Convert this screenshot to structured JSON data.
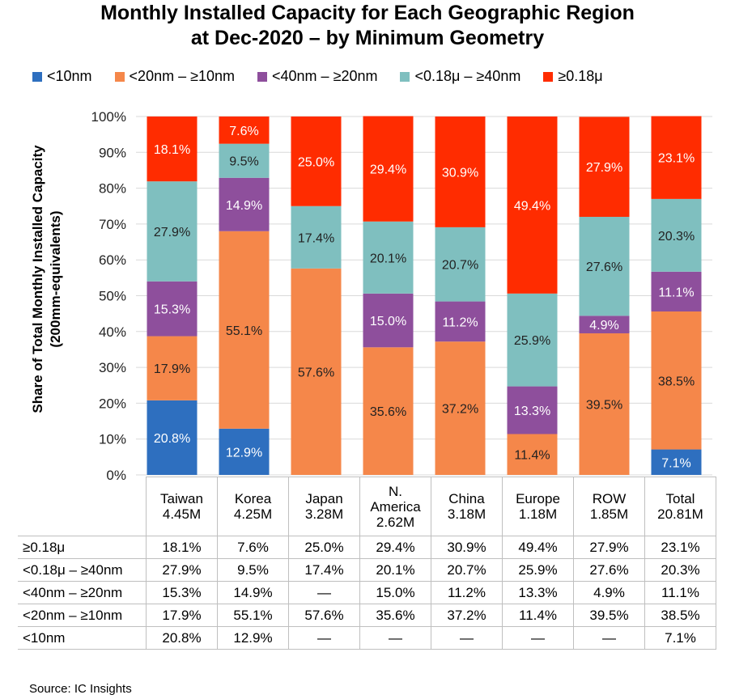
{
  "chart_data": {
    "type": "bar",
    "stacked": true,
    "title": "Monthly Installed Capacity for Each Geographic Region",
    "subtitle": "at Dec-2020 – by Minimum Geometry",
    "ylabel_line1": "Share of Total Monthly Installed Capacity",
    "ylabel_line2": "(200mm-equivalents)",
    "ylim": [
      0,
      100
    ],
    "yticks": [
      "0%",
      "10%",
      "20%",
      "30%",
      "40%",
      "50%",
      "60%",
      "70%",
      "80%",
      "90%",
      "100%"
    ],
    "categories": [
      "Taiwan",
      "Korea",
      "Japan",
      "N. America",
      "China",
      "Europe",
      "ROW",
      "Total"
    ],
    "category_line1": [
      "Taiwan",
      "Korea",
      "Japan",
      "N.",
      "China",
      "Europe",
      "ROW",
      "Total"
    ],
    "category_line2": [
      "4.45M",
      "4.25M",
      "3.28M",
      "America",
      "3.18M",
      "1.18M",
      "1.85M",
      "20.81M"
    ],
    "category_line3": [
      "",
      "",
      "",
      "2.62M",
      "",
      "",
      "",
      ""
    ],
    "series": [
      {
        "name": "<10nm",
        "color": "#2e6fbf",
        "values": [
          20.8,
          12.9,
          0,
          0,
          0,
          0,
          0,
          7.1
        ],
        "labels": [
          "20.8%",
          "12.9%",
          "",
          "",
          "",
          "",
          "",
          "7.1%"
        ],
        "text_color": "#ffffff"
      },
      {
        "name": "<20nm – ≥10nm",
        "color": "#f5874a",
        "values": [
          17.9,
          55.1,
          57.6,
          35.6,
          37.2,
          11.4,
          39.5,
          38.5
        ],
        "labels": [
          "17.9%",
          "55.1%",
          "57.6%",
          "35.6%",
          "37.2%",
          "11.4%",
          "39.5%",
          "38.5%"
        ],
        "text_color": "#222222"
      },
      {
        "name": "<40nm – ≥20nm",
        "color": "#8e4f9c",
        "values": [
          15.3,
          14.9,
          0,
          15.0,
          11.2,
          13.3,
          4.9,
          11.1
        ],
        "labels": [
          "15.3%",
          "14.9%",
          "",
          "15.0%",
          "11.2%",
          "13.3%",
          "4.9%",
          "11.1%"
        ],
        "text_color": "#ffffff"
      },
      {
        "name": "<0.18μ – ≥40nm",
        "color": "#7fbfbf",
        "values": [
          27.9,
          9.5,
          17.4,
          20.1,
          20.7,
          25.9,
          27.6,
          20.3
        ],
        "labels": [
          "27.9%",
          "9.5%",
          "17.4%",
          "20.1%",
          "20.7%",
          "25.9%",
          "27.6%",
          "20.3%"
        ],
        "text_color": "#222222"
      },
      {
        "name": "≥0.18μ",
        "color": "#ff2c00",
        "values": [
          18.1,
          7.6,
          25.0,
          29.4,
          30.9,
          49.4,
          27.9,
          23.1
        ],
        "labels": [
          "18.1%",
          "7.6%",
          "25.0%",
          "29.4%",
          "30.9%",
          "49.4%",
          "27.9%",
          "23.1%"
        ],
        "text_color": "#ffffff"
      }
    ],
    "table_rows": [
      {
        "label": "≥0.18μ",
        "cells": [
          "18.1%",
          "7.6%",
          "25.0%",
          "29.4%",
          "30.9%",
          "49.4%",
          "27.9%",
          "23.1%"
        ]
      },
      {
        "label": "<0.18μ – ≥40nm",
        "cells": [
          "27.9%",
          "9.5%",
          "17.4%",
          "20.1%",
          "20.7%",
          "25.9%",
          "27.6%",
          "20.3%"
        ]
      },
      {
        "label": "<40nm – ≥20nm",
        "cells": [
          "15.3%",
          "14.9%",
          "—",
          "15.0%",
          "11.2%",
          "13.3%",
          "4.9%",
          "11.1%"
        ]
      },
      {
        "label": "<20nm – ≥10nm",
        "cells": [
          "17.9%",
          "55.1%",
          "57.6%",
          "35.6%",
          "37.2%",
          "11.4%",
          "39.5%",
          "38.5%"
        ]
      },
      {
        "label": "<10nm",
        "cells": [
          "20.8%",
          "12.9%",
          "—",
          "—",
          "—",
          "—",
          "—",
          "7.1%"
        ]
      }
    ]
  },
  "source": "Source: IC Insights"
}
